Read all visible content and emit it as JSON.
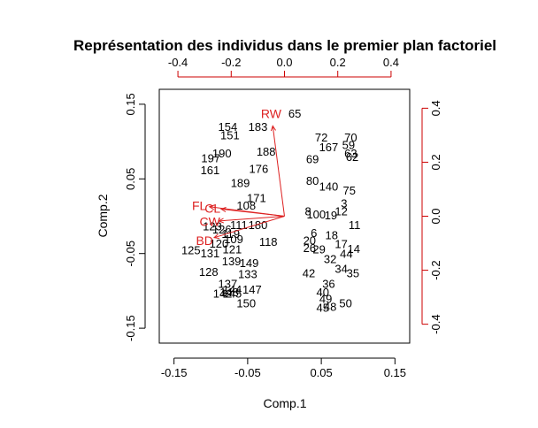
{
  "chart_data": {
    "type": "scatter",
    "title": "Représentation des individus dans le premier plan factoriel",
    "xlabel": "Comp.1",
    "ylabel": "Comp.2",
    "xlim": [
      -0.17,
      0.17
    ],
    "ylim": [
      -0.17,
      0.17
    ],
    "x_ticks": [
      "-0.15",
      "-0.05",
      "0.05",
      "0.15"
    ],
    "x_tick_values": [
      -0.15,
      -0.05,
      0.05,
      0.15
    ],
    "y_ticks": [
      "-0.15",
      "-0.05",
      "0.05",
      "0.15"
    ],
    "y_tick_values": [
      -0.15,
      -0.05,
      0.05,
      0.15
    ],
    "top_ticks": [
      "-0.4",
      "-0.2",
      "0.0",
      "0.2",
      "0.4"
    ],
    "top_tick_values": [
      -0.4,
      -0.2,
      0.0,
      0.2,
      0.4
    ],
    "right_ticks": [
      "-0.4",
      "-0.2",
      "0.0",
      "0.2",
      "0.4"
    ],
    "right_tick_values": [
      -0.4,
      -0.2,
      0.0,
      0.2,
      0.4
    ],
    "loadings_lim": [
      -0.47,
      0.47
    ],
    "loadings": [
      {
        "name": "RW",
        "x": -0.05,
        "y": 0.38
      },
      {
        "name": "FL",
        "x": -0.32,
        "y": 0.04
      },
      {
        "name": "CL",
        "x": -0.27,
        "y": 0.03
      },
      {
        "name": "CW",
        "x": -0.28,
        "y": -0.02
      },
      {
        "name": "BD",
        "x": -0.3,
        "y": -0.09
      }
    ],
    "loading_label_color": "#dd2222",
    "point_color": "#000000",
    "points": [
      {
        "label": "65",
        "x": 0.014,
        "y": 0.138
      },
      {
        "label": "183",
        "x": -0.036,
        "y": 0.12
      },
      {
        "label": "154",
        "x": -0.077,
        "y": 0.12
      },
      {
        "label": "151",
        "x": -0.074,
        "y": 0.109
      },
      {
        "label": "72",
        "x": 0.05,
        "y": 0.106
      },
      {
        "label": "70",
        "x": 0.09,
        "y": 0.106
      },
      {
        "label": "59",
        "x": 0.087,
        "y": 0.096
      },
      {
        "label": "167",
        "x": 0.06,
        "y": 0.093
      },
      {
        "label": "63",
        "x": 0.09,
        "y": 0.085
      },
      {
        "label": "188",
        "x": -0.025,
        "y": 0.087
      },
      {
        "label": "190",
        "x": -0.085,
        "y": 0.085
      },
      {
        "label": "197",
        "x": -0.1,
        "y": 0.078
      },
      {
        "label": "62",
        "x": 0.092,
        "y": 0.08
      },
      {
        "label": "69",
        "x": 0.038,
        "y": 0.077
      },
      {
        "label": "176",
        "x": -0.035,
        "y": 0.064
      },
      {
        "label": "161",
        "x": -0.101,
        "y": 0.062
      },
      {
        "label": "171",
        "x": -0.038,
        "y": 0.025
      },
      {
        "label": "189",
        "x": -0.06,
        "y": 0.045
      },
      {
        "label": "75",
        "x": 0.088,
        "y": 0.035
      },
      {
        "label": "80",
        "x": 0.038,
        "y": 0.048
      },
      {
        "label": "140",
        "x": 0.06,
        "y": 0.04
      },
      {
        "label": "108",
        "x": -0.052,
        "y": 0.015
      },
      {
        "label": "3",
        "x": 0.081,
        "y": 0.018
      },
      {
        "label": "12",
        "x": 0.077,
        "y": 0.007
      },
      {
        "label": "8",
        "x": 0.032,
        "y": 0.007
      },
      {
        "label": "100",
        "x": 0.043,
        "y": 0.003
      },
      {
        "label": "19",
        "x": 0.063,
        "y": 0.002
      },
      {
        "label": "11",
        "x": 0.095,
        "y": -0.011
      },
      {
        "label": "180",
        "x": -0.036,
        "y": -0.011
      },
      {
        "label": "111",
        "x": -0.062,
        "y": -0.011
      },
      {
        "label": "6",
        "x": 0.04,
        "y": -0.022
      },
      {
        "label": "18",
        "x": 0.064,
        "y": -0.025
      },
      {
        "label": "123",
        "x": -0.098,
        "y": -0.013
      },
      {
        "label": "126",
        "x": -0.085,
        "y": -0.017
      },
      {
        "label": "119",
        "x": -0.073,
        "y": -0.023
      },
      {
        "label": "118",
        "x": -0.022,
        "y": -0.034
      },
      {
        "label": "120",
        "x": -0.089,
        "y": -0.036
      },
      {
        "label": "109",
        "x": -0.069,
        "y": -0.03
      },
      {
        "label": "20",
        "x": 0.034,
        "y": -0.032
      },
      {
        "label": "17",
        "x": 0.077,
        "y": -0.037
      },
      {
        "label": "26",
        "x": 0.034,
        "y": -0.042
      },
      {
        "label": "14",
        "x": 0.094,
        "y": -0.043
      },
      {
        "label": "29",
        "x": 0.047,
        "y": -0.044
      },
      {
        "label": "125",
        "x": -0.127,
        "y": -0.045
      },
      {
        "label": "131",
        "x": -0.101,
        "y": -0.049
      },
      {
        "label": "121",
        "x": -0.071,
        "y": -0.044
      },
      {
        "label": "44",
        "x": 0.084,
        "y": -0.05
      },
      {
        "label": "139",
        "x": -0.072,
        "y": -0.06
      },
      {
        "label": "149",
        "x": -0.048,
        "y": -0.062
      },
      {
        "label": "32",
        "x": 0.062,
        "y": -0.057
      },
      {
        "label": "34",
        "x": 0.077,
        "y": -0.07
      },
      {
        "label": "128",
        "x": -0.103,
        "y": -0.074
      },
      {
        "label": "42",
        "x": 0.033,
        "y": -0.076
      },
      {
        "label": "35",
        "x": 0.093,
        "y": -0.076
      },
      {
        "label": "133",
        "x": -0.05,
        "y": -0.077
      },
      {
        "label": "137",
        "x": -0.077,
        "y": -0.09
      },
      {
        "label": "36",
        "x": 0.06,
        "y": -0.09
      },
      {
        "label": "147",
        "x": -0.044,
        "y": -0.098
      },
      {
        "label": "144",
        "x": -0.071,
        "y": -0.098
      },
      {
        "label": "148",
        "x": -0.075,
        "y": -0.101
      },
      {
        "label": "40",
        "x": 0.052,
        "y": -0.101
      },
      {
        "label": "145",
        "x": -0.071,
        "y": -0.103
      },
      {
        "label": "142",
        "x": -0.084,
        "y": -0.103
      },
      {
        "label": "49",
        "x": 0.056,
        "y": -0.11
      },
      {
        "label": "150",
        "x": -0.052,
        "y": -0.116
      },
      {
        "label": "50",
        "x": 0.083,
        "y": -0.116
      },
      {
        "label": "48",
        "x": 0.062,
        "y": -0.121
      },
      {
        "label": "45",
        "x": 0.052,
        "y": -0.122
      }
    ]
  }
}
